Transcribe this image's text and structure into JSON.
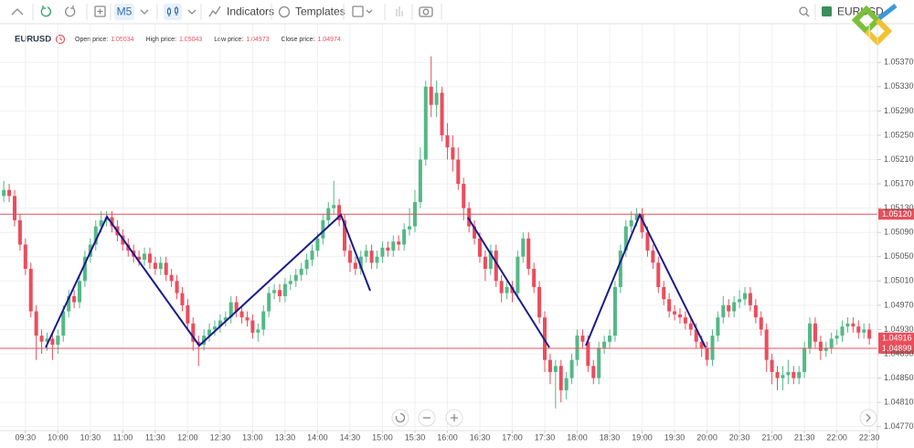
{
  "toolbar": {
    "timeframe": "M5",
    "indicators": "Indicators",
    "templates": "Templates",
    "symbol": "EURUSD"
  },
  "legend": {
    "symbol": "EURUSD",
    "items": [
      {
        "label": "Open price:",
        "value": "1.05034"
      },
      {
        "label": "High price:",
        "value": "1.05043"
      },
      {
        "label": "Low price:",
        "value": "1.04973"
      },
      {
        "label": "Close price:",
        "value": "1.04974"
      }
    ]
  },
  "chart_data": {
    "type": "candlestick",
    "up_color": "#53b987",
    "down_color": "#eb4d5c",
    "grid": true,
    "open": [
      1.0515,
      1.0516,
      1.0515,
      1.0511,
      1.0507,
      1.0503,
      1.0496,
      1.0492,
      1.0491,
      1.04915,
      1.04905,
      1.0492,
      1.0496,
      1.04985,
      1.04975,
      1.0501,
      1.0505,
      1.0507,
      1.051,
      1.0511,
      1.05115,
      1.051,
      1.05085,
      1.0507,
      1.0506,
      1.0505,
      1.05045,
      1.05055,
      1.0504,
      1.0503,
      1.0504,
      1.0502,
      1.0501,
      1.0499,
      1.0497,
      1.0494,
      1.0491,
      1.04905,
      1.0492,
      1.0493,
      1.04935,
      1.04945,
      1.0495,
      1.04975,
      1.0496,
      1.0495,
      1.04945,
      1.04925,
      1.0493,
      1.0496,
      1.0499,
      1.04995,
      1.04985,
      1.05005,
      1.0501,
      1.0502,
      1.0503,
      1.05045,
      1.0506,
      1.0508,
      1.0511,
      1.0513,
      1.05135,
      1.0511,
      1.0506,
      1.0504,
      1.0503,
      1.0505,
      1.0506,
      1.0504,
      1.0505,
      1.05065,
      1.0506,
      1.05075,
      1.0507,
      1.05095,
      1.051,
      1.0514,
      1.0521,
      1.0533,
      1.053,
      1.0532,
      1.0525,
      1.0523,
      1.0521,
      1.0517,
      1.0513,
      1.051,
      1.0508,
      1.0505,
      1.0503,
      1.0506,
      1.0501,
      1.0499,
      1.05,
      1.0499,
      1.0505,
      1.0508,
      1.0503,
      1.05,
      1.0495,
      1.0488,
      1.0486,
      1.0487,
      1.0483,
      1.0485,
      1.0488,
      1.0492,
      1.0491,
      1.0487,
      1.0485,
      1.049,
      1.0491,
      1.0492,
      1.05,
      1.0506,
      1.051,
      1.0511,
      1.0512,
      1.0509,
      1.0506,
      1.0504,
      1.05,
      1.0498,
      1.0496,
      1.04955,
      1.0495,
      1.0494,
      1.0493,
      1.0491,
      1.049,
      1.0488,
      1.0492,
      1.0495,
      1.0497,
      1.0496,
      1.04975,
      1.0498,
      1.0499,
      1.0497,
      1.0495,
      1.0493,
      1.0488,
      1.0486,
      1.0485,
      1.04855,
      1.0486,
      1.0485,
      1.0486,
      1.049,
      1.0494,
      1.0491,
      1.04895,
      1.049,
      1.04915,
      1.0492,
      1.04935,
      1.0494,
      1.04935,
      1.04925,
      1.0493
    ],
    "high": [
      1.05175,
      1.0517,
      1.0516,
      1.0512,
      1.0508,
      1.0504,
      1.0497,
      1.0493,
      1.04925,
      1.04925,
      1.0493,
      1.0497,
      1.04995,
      1.04995,
      1.0502,
      1.0506,
      1.0508,
      1.0511,
      1.05125,
      1.05125,
      1.05125,
      1.0511,
      1.05095,
      1.0508,
      1.0507,
      1.0506,
      1.05065,
      1.05065,
      1.0505,
      1.0505,
      1.0505,
      1.0503,
      1.0502,
      1.05,
      1.0498,
      1.0495,
      1.0492,
      1.0493,
      1.0494,
      1.04945,
      1.04955,
      1.0496,
      1.04985,
      1.04985,
      1.0497,
      1.0496,
      1.04955,
      1.0494,
      1.0497,
      1.05,
      1.05005,
      1.05005,
      1.05015,
      1.0502,
      1.0503,
      1.0504,
      1.05055,
      1.0507,
      1.0509,
      1.0512,
      1.0514,
      1.05175,
      1.05145,
      1.0512,
      1.0507,
      1.0505,
      1.0506,
      1.0507,
      1.0507,
      1.0506,
      1.05075,
      1.05075,
      1.05085,
      1.05085,
      1.05105,
      1.0513,
      1.0516,
      1.0523,
      1.0534,
      1.0538,
      1.0534,
      1.0533,
      1.0527,
      1.0525,
      1.0523,
      1.0518,
      1.0514,
      1.0511,
      1.0509,
      1.0506,
      1.0507,
      1.0507,
      1.0502,
      1.0501,
      1.0501,
      1.0506,
      1.0509,
      1.0509,
      1.0504,
      1.0501,
      1.0496,
      1.0489,
      1.0488,
      1.0488,
      1.0486,
      1.0489,
      1.0493,
      1.0493,
      1.0492,
      1.0488,
      1.0491,
      1.0492,
      1.0493,
      1.0501,
      1.0507,
      1.0511,
      1.05125,
      1.0513,
      1.0513,
      1.051,
      1.0507,
      1.0505,
      1.0501,
      1.0499,
      1.0497,
      1.04965,
      1.0496,
      1.0495,
      1.0494,
      1.0492,
      1.0491,
      1.0493,
      1.0496,
      1.04985,
      1.0498,
      1.04985,
      1.04995,
      1.05,
      1.05,
      1.0498,
      1.0496,
      1.0494,
      1.0489,
      1.0487,
      1.0487,
      1.0488,
      1.0487,
      1.0487,
      1.0491,
      1.0495,
      1.0495,
      1.0492,
      1.0491,
      1.04925,
      1.0493,
      1.04945,
      1.0495,
      1.0495,
      1.04945,
      1.0494,
      1.0494
    ],
    "low": [
      1.0514,
      1.0514,
      1.051,
      1.0506,
      1.0502,
      1.0495,
      1.0488,
      1.0489,
      1.04895,
      1.0488,
      1.0489,
      1.0491,
      1.0495,
      1.04965,
      1.04965,
      1.05,
      1.0504,
      1.0506,
      1.0509,
      1.051,
      1.0509,
      1.05075,
      1.0506,
      1.0505,
      1.0504,
      1.05035,
      1.05035,
      1.0503,
      1.0502,
      1.0502,
      1.0501,
      1.05,
      1.0498,
      1.0496,
      1.0493,
      1.04895,
      1.0487,
      1.04895,
      1.0491,
      1.0492,
      1.04925,
      1.04935,
      1.0494,
      1.0495,
      1.0494,
      1.04935,
      1.04915,
      1.0491,
      1.0492,
      1.0495,
      1.0498,
      1.04975,
      1.04975,
      1.04995,
      1.05,
      1.0501,
      1.0502,
      1.05035,
      1.0505,
      1.0507,
      1.051,
      1.0512,
      1.051,
      1.0505,
      1.05025,
      1.0502,
      1.0502,
      1.0504,
      1.0503,
      1.0503,
      1.0504,
      1.0505,
      1.0505,
      1.0506,
      1.0506,
      1.05085,
      1.0509,
      1.0513,
      1.052,
      1.0528,
      1.0528,
      1.0524,
      1.0521,
      1.0519,
      1.0516,
      1.0511,
      1.0509,
      1.0507,
      1.0504,
      1.0501,
      1.0502,
      1.05,
      1.04975,
      1.0498,
      1.04975,
      1.0498,
      1.0504,
      1.0502,
      1.0499,
      1.0494,
      1.0486,
      1.0484,
      1.048,
      1.0481,
      1.04815,
      1.0484,
      1.0487,
      1.049,
      1.0486,
      1.0484,
      1.0484,
      1.0489,
      1.049,
      1.0491,
      1.0499,
      1.0505,
      1.0509,
      1.051,
      1.0508,
      1.0505,
      1.0503,
      1.0499,
      1.0497,
      1.0495,
      1.04945,
      1.0494,
      1.0493,
      1.0492,
      1.049,
      1.04885,
      1.0487,
      1.0487,
      1.0491,
      1.0494,
      1.0495,
      1.0495,
      1.04965,
      1.0497,
      1.0496,
      1.0494,
      1.0492,
      1.0486,
      1.0484,
      1.0483,
      1.0483,
      1.0484,
      1.0484,
      1.0484,
      1.0485,
      1.0489,
      1.049,
      1.0488,
      1.04885,
      1.0489,
      1.04905,
      1.0491,
      1.04925,
      1.04925,
      1.04915,
      1.04915,
      1.04905
    ],
    "close": [
      1.0516,
      1.0515,
      1.0511,
      1.0507,
      1.0503,
      1.0496,
      1.0492,
      1.0491,
      1.04915,
      1.04905,
      1.0492,
      1.0496,
      1.04985,
      1.04975,
      1.0501,
      1.0505,
      1.0507,
      1.051,
      1.0511,
      1.05115,
      1.051,
      1.05085,
      1.0507,
      1.0506,
      1.0505,
      1.05045,
      1.05055,
      1.0504,
      1.0503,
      1.0504,
      1.0502,
      1.0501,
      1.0499,
      1.0497,
      1.0494,
      1.0491,
      1.04905,
      1.0492,
      1.0493,
      1.04935,
      1.04945,
      1.0495,
      1.04975,
      1.0496,
      1.0495,
      1.04945,
      1.04925,
      1.0493,
      1.0496,
      1.0499,
      1.04995,
      1.04985,
      1.05005,
      1.0501,
      1.0502,
      1.0503,
      1.05045,
      1.0506,
      1.0508,
      1.0511,
      1.0513,
      1.05135,
      1.0511,
      1.0506,
      1.0504,
      1.0503,
      1.0505,
      1.0506,
      1.0504,
      1.0505,
      1.05065,
      1.0506,
      1.05075,
      1.0507,
      1.05095,
      1.051,
      1.0514,
      1.0521,
      1.0533,
      1.053,
      1.0532,
      1.0525,
      1.0523,
      1.0521,
      1.0517,
      1.0513,
      1.051,
      1.0508,
      1.0505,
      1.0503,
      1.0506,
      1.0501,
      1.0499,
      1.05,
      1.0499,
      1.0505,
      1.0508,
      1.0503,
      1.05,
      1.0495,
      1.0488,
      1.0486,
      1.0487,
      1.0483,
      1.0485,
      1.0488,
      1.0492,
      1.0491,
      1.0487,
      1.0485,
      1.049,
      1.0491,
      1.0492,
      1.05,
      1.0506,
      1.051,
      1.0511,
      1.0512,
      1.0509,
      1.0506,
      1.0504,
      1.05,
      1.0498,
      1.0496,
      1.04955,
      1.0495,
      1.0494,
      1.0493,
      1.0491,
      1.049,
      1.0488,
      1.0492,
      1.0495,
      1.0497,
      1.0496,
      1.04975,
      1.0498,
      1.0499,
      1.0497,
      1.0495,
      1.0493,
      1.0488,
      1.0486,
      1.0485,
      1.04855,
      1.0486,
      1.0485,
      1.0486,
      1.049,
      1.0494,
      1.0491,
      1.04895,
      1.049,
      1.04915,
      1.0492,
      1.04935,
      1.0494,
      1.04935,
      1.04925,
      1.0493,
      1.04915
    ],
    "xlim": [
      -0.7,
      161.5
    ],
    "xticks": [
      {
        "value": 4,
        "label": "09:30"
      },
      {
        "value": 10,
        "label": "10:00"
      },
      {
        "value": 16,
        "label": "10:30"
      },
      {
        "value": 22,
        "label": "11:00"
      },
      {
        "value": 28,
        "label": "11:30"
      },
      {
        "value": 34,
        "label": "12:00"
      },
      {
        "value": 40,
        "label": "12:30"
      },
      {
        "value": 46,
        "label": "13:00"
      },
      {
        "value": 52,
        "label": "13:30"
      },
      {
        "value": 58,
        "label": "14:00"
      },
      {
        "value": 64,
        "label": "14:30"
      },
      {
        "value": 70,
        "label": "15:00"
      },
      {
        "value": 76,
        "label": "15:30"
      },
      {
        "value": 82,
        "label": "16:00"
      },
      {
        "value": 88,
        "label": "16:30"
      },
      {
        "value": 94,
        "label": "17:00"
      },
      {
        "value": 100,
        "label": "17:30"
      },
      {
        "value": 106,
        "label": "18:00"
      },
      {
        "value": 112,
        "label": "18:30"
      },
      {
        "value": 118,
        "label": "19:00"
      },
      {
        "value": 124,
        "label": "19:30"
      },
      {
        "value": 130,
        "label": "20:00"
      },
      {
        "value": 136,
        "label": "20:30"
      },
      {
        "value": 142,
        "label": "21:00"
      },
      {
        "value": 148,
        "label": "21:30"
      },
      {
        "value": 154,
        "label": "22:00"
      },
      {
        "value": 160,
        "label": "22:30"
      }
    ],
    "ylim": [
      1.04765,
      1.0539
    ],
    "yticks": [
      {
        "value": 1.0537,
        "label": "1.05370"
      },
      {
        "value": 1.0533,
        "label": "1.05330"
      },
      {
        "value": 1.0529,
        "label": "1.05290"
      },
      {
        "value": 1.0525,
        "label": "1.05250"
      },
      {
        "value": 1.0521,
        "label": "1.05210"
      },
      {
        "value": 1.0517,
        "label": "1.05170"
      },
      {
        "value": 1.0513,
        "label": "1.05130"
      },
      {
        "value": 1.0509,
        "label": "1.05090"
      },
      {
        "value": 1.0505,
        "label": "1.05050"
      },
      {
        "value": 1.0501,
        "label": "1.05010"
      },
      {
        "value": 1.0497,
        "label": "1.04970"
      },
      {
        "value": 1.0493,
        "label": "1.04930"
      },
      {
        "value": 1.0489,
        "label": "1.04890"
      },
      {
        "value": 1.0485,
        "label": "1.04850"
      },
      {
        "value": 1.0481,
        "label": "1.04810"
      },
      {
        "value": 1.0477,
        "label": "1.04770"
      }
    ],
    "price_lines": [
      {
        "value": 1.0512,
        "label": "1.05120",
        "color": "#e5505c"
      },
      {
        "value": 1.04899,
        "label": "1.04899",
        "color": "#e5505c"
      }
    ],
    "last_price": {
      "value": 1.04916,
      "label": "1.04916",
      "color": "#eb4d5c"
    }
  }
}
